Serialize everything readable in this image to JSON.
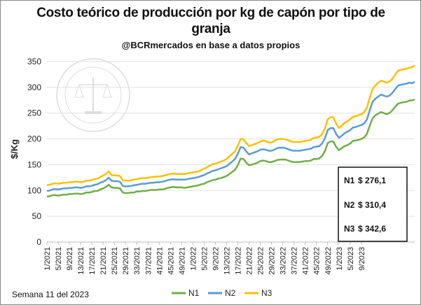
{
  "chart_data": {
    "type": "line",
    "title": "Costo teórico de producción por kg de capón por tipo de granja",
    "subtitle": "@BCRmercados en base a datos propios",
    "footnote": "Semana 11 del 2023",
    "ylabel": "$/Kg",
    "xlabel": "",
    "ylim": [
      0,
      350
    ],
    "yticks": [
      0,
      50,
      100,
      150,
      200,
      250,
      300,
      350
    ],
    "x_labels": [
      "1/2021",
      "5/2021",
      "9/2021",
      "13/2021",
      "17/2021",
      "21/2021",
      "25/2021",
      "29/2021",
      "33/2021",
      "37/2021",
      "41/2021",
      "45/2021",
      "49/2021",
      "1/2022",
      "5/2022",
      "9/2022",
      "13/2022",
      "17/2022",
      "21/2022",
      "25/2022",
      "29/2022",
      "33/2022",
      "37/2022",
      "41/2022",
      "45/2022",
      "49/2022",
      "1/2023",
      "5/2023",
      "9/2023"
    ],
    "x_label_step_weeks": 4,
    "grid": true,
    "legend_position": "bottom",
    "series": [
      {
        "name": "N1",
        "color": "#70AD47",
        "values": [
          88,
          89,
          91,
          91,
          90,
          91,
          92,
          92,
          93,
          93,
          94,
          94,
          93,
          94,
          96,
          96,
          97,
          99,
          99,
          102,
          104,
          107,
          111,
          106,
          105,
          105,
          104,
          96,
          95,
          95,
          96,
          96,
          98,
          98,
          99,
          99,
          100,
          101,
          101,
          101,
          102,
          102,
          103,
          105,
          106,
          107,
          106,
          106,
          106,
          105,
          106,
          107,
          108,
          109,
          110,
          112,
          113,
          116,
          118,
          120,
          121,
          123,
          124,
          126,
          128,
          132,
          136,
          140,
          149,
          162,
          161,
          154,
          149,
          150,
          152,
          154,
          157,
          158,
          157,
          155,
          155,
          157,
          159,
          160,
          160,
          160,
          158,
          156,
          155,
          155,
          155,
          156,
          157,
          157,
          158,
          161,
          161,
          162,
          167,
          176,
          192,
          195,
          195,
          185,
          178,
          182,
          186,
          188,
          191,
          196,
          197,
          198,
          200,
          203,
          210,
          226,
          240,
          246,
          249,
          252,
          250,
          248,
          250,
          255,
          262,
          268,
          270,
          271,
          272,
          274,
          275,
          276.1
        ]
      },
      {
        "name": "N2",
        "color": "#5B9BD5",
        "values": [
          99,
          100,
          102,
          103,
          102,
          103,
          104,
          104,
          105,
          105,
          106,
          106,
          105,
          106,
          108,
          108,
          109,
          111,
          112,
          115,
          117,
          120,
          125,
          119,
          118,
          118,
          117,
          109,
          108,
          108,
          109,
          110,
          111,
          112,
          113,
          113,
          114,
          115,
          115,
          116,
          116,
          117,
          118,
          120,
          121,
          122,
          121,
          121,
          121,
          121,
          122,
          123,
          124,
          125,
          126,
          128,
          130,
          133,
          135,
          138,
          139,
          141,
          143,
          145,
          147,
          152,
          156,
          161,
          171,
          184,
          183,
          176,
          170,
          172,
          174,
          176,
          179,
          180,
          179,
          177,
          177,
          179,
          182,
          183,
          183,
          182,
          180,
          178,
          177,
          177,
          177,
          178,
          179,
          180,
          181,
          184,
          185,
          186,
          191,
          201,
          217,
          221,
          221,
          210,
          202,
          206,
          211,
          214,
          217,
          222,
          223,
          225,
          227,
          230,
          238,
          256,
          272,
          278,
          282,
          286,
          284,
          282,
          284,
          289,
          296,
          303,
          305,
          306,
          307,
          309,
          308,
          310.4
        ]
      },
      {
        "name": "N3",
        "color": "#FFC000",
        "values": [
          110,
          111,
          113,
          114,
          113,
          114,
          115,
          115,
          116,
          116,
          117,
          117,
          116,
          117,
          119,
          119,
          120,
          122,
          123,
          126,
          129,
          132,
          137,
          130,
          129,
          129,
          128,
          120,
          119,
          119,
          120,
          121,
          122,
          123,
          124,
          124,
          125,
          126,
          126,
          127,
          127,
          128,
          129,
          131,
          132,
          133,
          132,
          132,
          132,
          132,
          133,
          134,
          135,
          136,
          137,
          140,
          142,
          145,
          148,
          151,
          152,
          154,
          156,
          158,
          161,
          166,
          171,
          176,
          187,
          200,
          199,
          192,
          186,
          188,
          190,
          192,
          195,
          197,
          196,
          193,
          193,
          196,
          199,
          200,
          200,
          199,
          197,
          195,
          194,
          194,
          194,
          195,
          196,
          197,
          198,
          202,
          203,
          204,
          209,
          220,
          238,
          242,
          242,
          230,
          221,
          226,
          231,
          234,
          238,
          243,
          244,
          246,
          248,
          252,
          261,
          280,
          297,
          304,
          309,
          313,
          311,
          309,
          311,
          316,
          324,
          332,
          334,
          335,
          336,
          338,
          339,
          342.6
        ]
      }
    ],
    "value_box": [
      {
        "series": "N1",
        "value": "$ 276,1"
      },
      {
        "series": "N2",
        "value": "$ 310,4"
      },
      {
        "series": "N3",
        "value": "$ 342,6"
      }
    ]
  }
}
